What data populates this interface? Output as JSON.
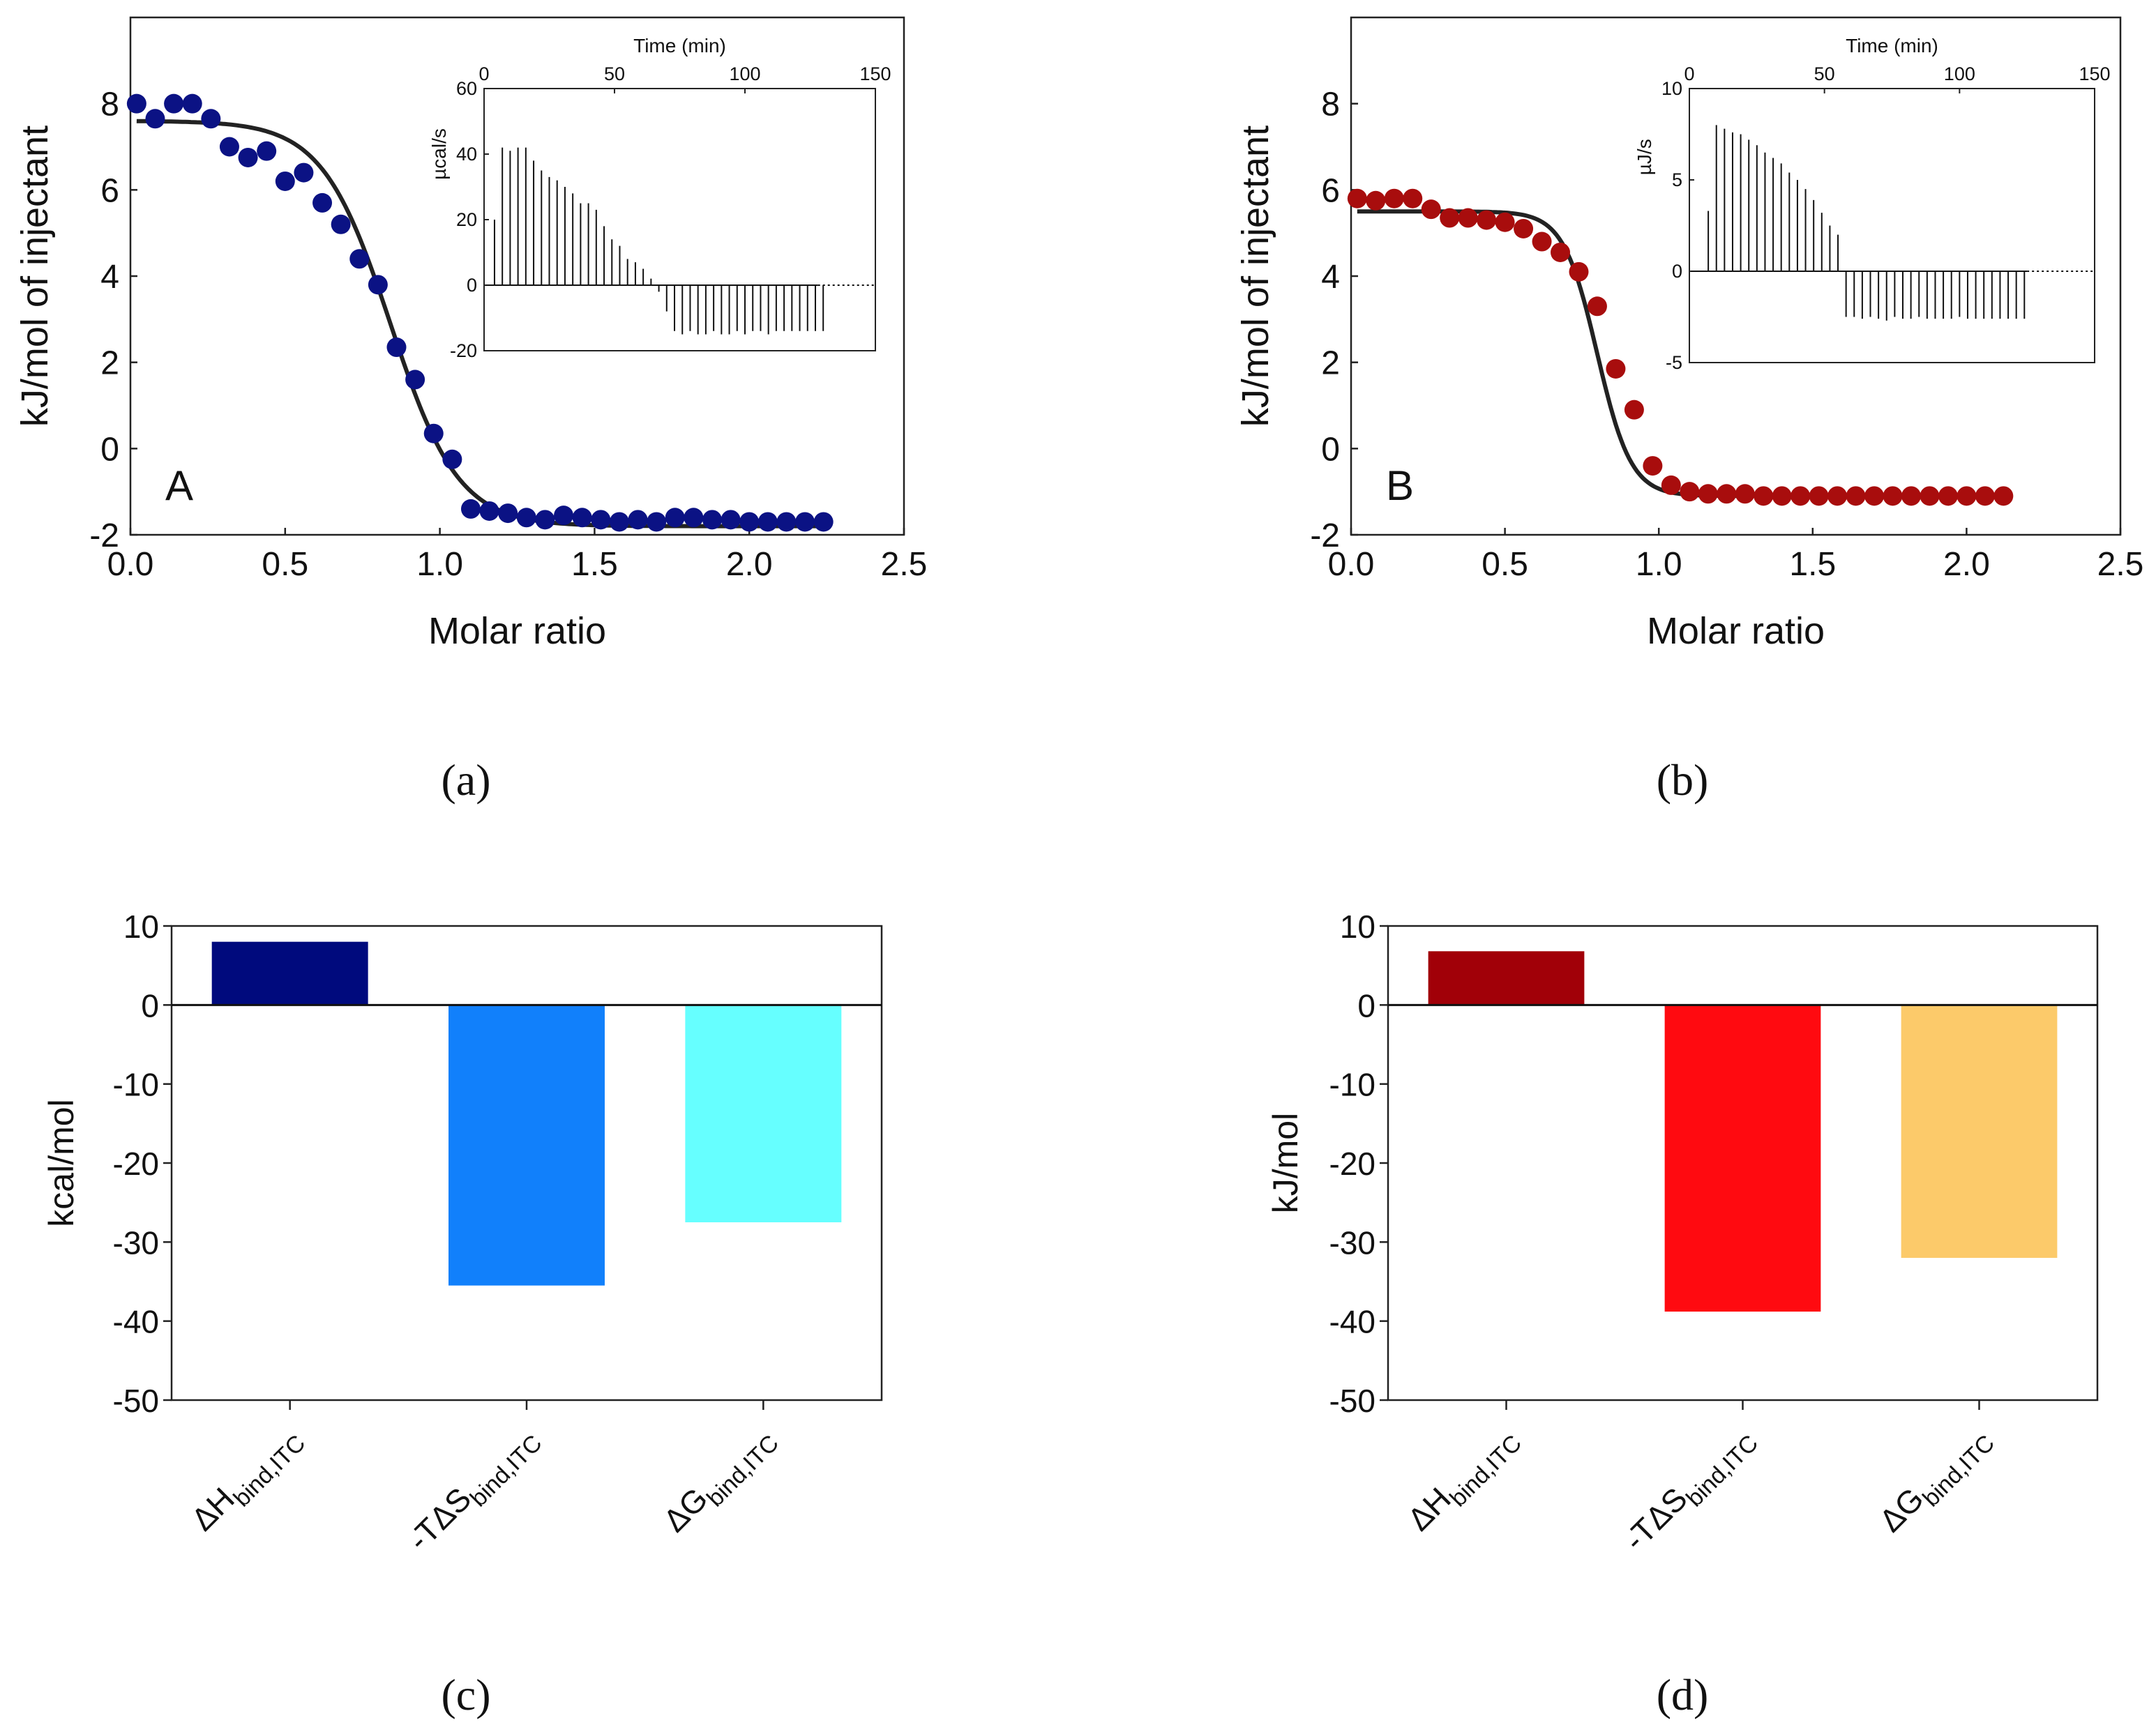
{
  "chart_data": [
    {
      "id": "a",
      "type": "scatter",
      "caption": "(a)",
      "panel_label": "A",
      "xlabel": "Molar ratio",
      "ylabel": "kJ/mol of injectant",
      "xlim": [
        0.0,
        2.5
      ],
      "ylim": [
        -2,
        10
      ],
      "xticks": [
        "0.0",
        "0.5",
        "1.0",
        "1.5",
        "2.0",
        "2.5"
      ],
      "yticks": [
        "-2",
        "0",
        "2",
        "4",
        "6",
        "8"
      ],
      "color": "#0b1284",
      "fit_color": "#222222",
      "fit": {
        "model": "sigmoid",
        "top": 7.6,
        "bottom": -1.8,
        "x50": 0.84,
        "width": 0.11
      },
      "points": [
        [
          0.02,
          8.0
        ],
        [
          0.08,
          7.65
        ],
        [
          0.14,
          8.0
        ],
        [
          0.2,
          8.0
        ],
        [
          0.26,
          7.65
        ],
        [
          0.32,
          7.0
        ],
        [
          0.38,
          6.75
        ],
        [
          0.44,
          6.9
        ],
        [
          0.5,
          6.2
        ],
        [
          0.56,
          6.4
        ],
        [
          0.62,
          5.7
        ],
        [
          0.68,
          5.2
        ],
        [
          0.74,
          4.4
        ],
        [
          0.8,
          3.8
        ],
        [
          0.86,
          2.35
        ],
        [
          0.92,
          1.6
        ],
        [
          0.98,
          0.35
        ],
        [
          1.04,
          -0.25
        ],
        [
          1.1,
          -1.4
        ],
        [
          1.16,
          -1.45
        ],
        [
          1.22,
          -1.5
        ],
        [
          1.28,
          -1.6
        ],
        [
          1.34,
          -1.65
        ],
        [
          1.4,
          -1.55
        ],
        [
          1.46,
          -1.6
        ],
        [
          1.52,
          -1.65
        ],
        [
          1.58,
          -1.7
        ],
        [
          1.64,
          -1.65
        ],
        [
          1.7,
          -1.7
        ],
        [
          1.76,
          -1.6
        ],
        [
          1.82,
          -1.6
        ],
        [
          1.88,
          -1.65
        ],
        [
          1.94,
          -1.65
        ],
        [
          2.0,
          -1.7
        ],
        [
          2.06,
          -1.7
        ],
        [
          2.12,
          -1.7
        ],
        [
          2.18,
          -1.7
        ],
        [
          2.24,
          -1.7
        ]
      ],
      "inset": {
        "type": "line",
        "xlabel": "Time (min)",
        "ylabel": "µcal/s",
        "xlim": [
          0,
          150
        ],
        "ylim": [
          -20,
          60
        ],
        "xticks": [
          "0",
          "50",
          "100",
          "150"
        ],
        "yticks": [
          "-20",
          "0",
          "20",
          "40",
          "60"
        ],
        "injection_times": [
          4,
          7,
          10,
          13,
          16,
          19,
          22,
          25,
          28,
          31,
          34,
          37,
          40,
          43,
          46,
          49,
          52,
          55,
          58,
          61,
          64,
          67,
          70,
          73,
          76,
          79,
          82,
          85,
          88,
          91,
          94,
          97,
          100,
          103,
          106,
          109,
          112,
          115,
          118,
          121,
          124,
          127,
          130
        ],
        "peak_values": [
          20,
          42,
          41,
          42,
          42,
          38,
          35,
          33,
          32,
          30,
          28,
          25,
          25,
          23,
          18,
          14,
          12,
          8,
          7,
          5,
          2,
          -2,
          -8,
          -14,
          -15,
          -14,
          -15,
          -15,
          -14,
          -15,
          -15,
          -14,
          -15,
          -14,
          -14,
          -15,
          -14,
          -14,
          -14,
          -14,
          -14,
          -14,
          -14
        ],
        "baseline": 0,
        "data_end": 128
      }
    },
    {
      "id": "b",
      "type": "scatter",
      "caption": "(b)",
      "panel_label": "B",
      "xlabel": "Molar ratio",
      "ylabel": "kJ/mol of injectant",
      "xlim": [
        0.0,
        2.5
      ],
      "ylim": [
        -2,
        10
      ],
      "xticks": [
        "0.0",
        "0.5",
        "1.0",
        "1.5",
        "2.0",
        "2.5"
      ],
      "yticks": [
        "-2",
        "0",
        "2",
        "4",
        "6",
        "8"
      ],
      "color": "#a80d0d",
      "fit_color": "#222222",
      "fit": {
        "model": "sigmoid",
        "top": 5.5,
        "bottom": -1.1,
        "x50": 0.8,
        "width": 0.055
      },
      "points": [
        [
          0.02,
          5.8
        ],
        [
          0.08,
          5.75
        ],
        [
          0.14,
          5.8
        ],
        [
          0.2,
          5.8
        ],
        [
          0.26,
          5.55
        ],
        [
          0.32,
          5.35
        ],
        [
          0.38,
          5.35
        ],
        [
          0.44,
          5.3
        ],
        [
          0.5,
          5.25
        ],
        [
          0.56,
          5.1
        ],
        [
          0.62,
          4.8
        ],
        [
          0.68,
          4.55
        ],
        [
          0.74,
          4.1
        ],
        [
          0.8,
          3.3
        ],
        [
          0.86,
          1.85
        ],
        [
          0.92,
          0.9
        ],
        [
          0.98,
          -0.4
        ],
        [
          1.04,
          -0.85
        ],
        [
          1.1,
          -1.0
        ],
        [
          1.16,
          -1.05
        ],
        [
          1.22,
          -1.05
        ],
        [
          1.28,
          -1.05
        ],
        [
          1.34,
          -1.1
        ],
        [
          1.4,
          -1.1
        ],
        [
          1.46,
          -1.1
        ],
        [
          1.52,
          -1.1
        ],
        [
          1.58,
          -1.1
        ],
        [
          1.64,
          -1.1
        ],
        [
          1.7,
          -1.1
        ],
        [
          1.76,
          -1.1
        ],
        [
          1.82,
          -1.1
        ],
        [
          1.88,
          -1.1
        ],
        [
          1.94,
          -1.1
        ],
        [
          2.0,
          -1.1
        ],
        [
          2.06,
          -1.1
        ],
        [
          2.12,
          -1.1
        ]
      ],
      "inset": {
        "type": "line",
        "xlabel": "Time (min)",
        "ylabel": "µJ/s",
        "xlim": [
          0,
          150
        ],
        "ylim": [
          -5,
          10
        ],
        "xticks": [
          "0",
          "50",
          "100",
          "150"
        ],
        "yticks": [
          "-5",
          "0",
          "5",
          "10"
        ],
        "injection_times": [
          7,
          10,
          13,
          16,
          19,
          22,
          25,
          28,
          31,
          34,
          37,
          40,
          43,
          46,
          49,
          52,
          55,
          58,
          61,
          64,
          67,
          70,
          73,
          76,
          79,
          82,
          85,
          88,
          91,
          94,
          97,
          100,
          103,
          106,
          109,
          112,
          115,
          118,
          121,
          124
        ],
        "peak_values": [
          3.3,
          8.0,
          7.8,
          7.6,
          7.5,
          7.2,
          6.9,
          6.5,
          6.2,
          5.9,
          5.4,
          5.0,
          4.5,
          3.9,
          3.2,
          2.5,
          2.0,
          -2.5,
          -2.5,
          -2.6,
          -2.5,
          -2.6,
          -2.7,
          -2.5,
          -2.6,
          -2.6,
          -2.5,
          -2.6,
          -2.6,
          -2.6,
          -2.6,
          -2.5,
          -2.6,
          -2.6,
          -2.6,
          -2.6,
          -2.6,
          -2.6,
          -2.6,
          -2.6
        ],
        "baseline": 0,
        "data_end": 125
      }
    },
    {
      "id": "c",
      "type": "bar",
      "caption": "(c)",
      "ylabel": "kcal/mol",
      "ylim": [
        -50,
        10
      ],
      "yticks": [
        "10",
        "0",
        "-10",
        "-20",
        "-30",
        "-40",
        "-50"
      ],
      "categories": [
        {
          "main": "ΔH",
          "sub": "bind,ITC"
        },
        {
          "main": "-TΔS",
          "sub": "bind,ITC"
        },
        {
          "main": "ΔG",
          "sub": "bind,ITC"
        }
      ],
      "values": [
        8.0,
        -35.5,
        -27.5
      ],
      "colors": [
        "#000a7d",
        "#1180fb",
        "#66ffff"
      ]
    },
    {
      "id": "d",
      "type": "bar",
      "caption": "(d)",
      "ylabel": "kJ/mol",
      "ylim": [
        -50,
        10
      ],
      "yticks": [
        "10",
        "0",
        "-10",
        "-20",
        "-30",
        "-40",
        "-50"
      ],
      "categories": [
        {
          "main": "ΔH",
          "sub": "bind,ITC"
        },
        {
          "main": "-TΔS",
          "sub": "bind,ITC"
        },
        {
          "main": "ΔG",
          "sub": "bind,ITC"
        }
      ],
      "values": [
        6.8,
        -38.8,
        -32.0
      ],
      "colors": [
        "#a10008",
        "#ff0a10",
        "#fcca6a"
      ]
    }
  ]
}
